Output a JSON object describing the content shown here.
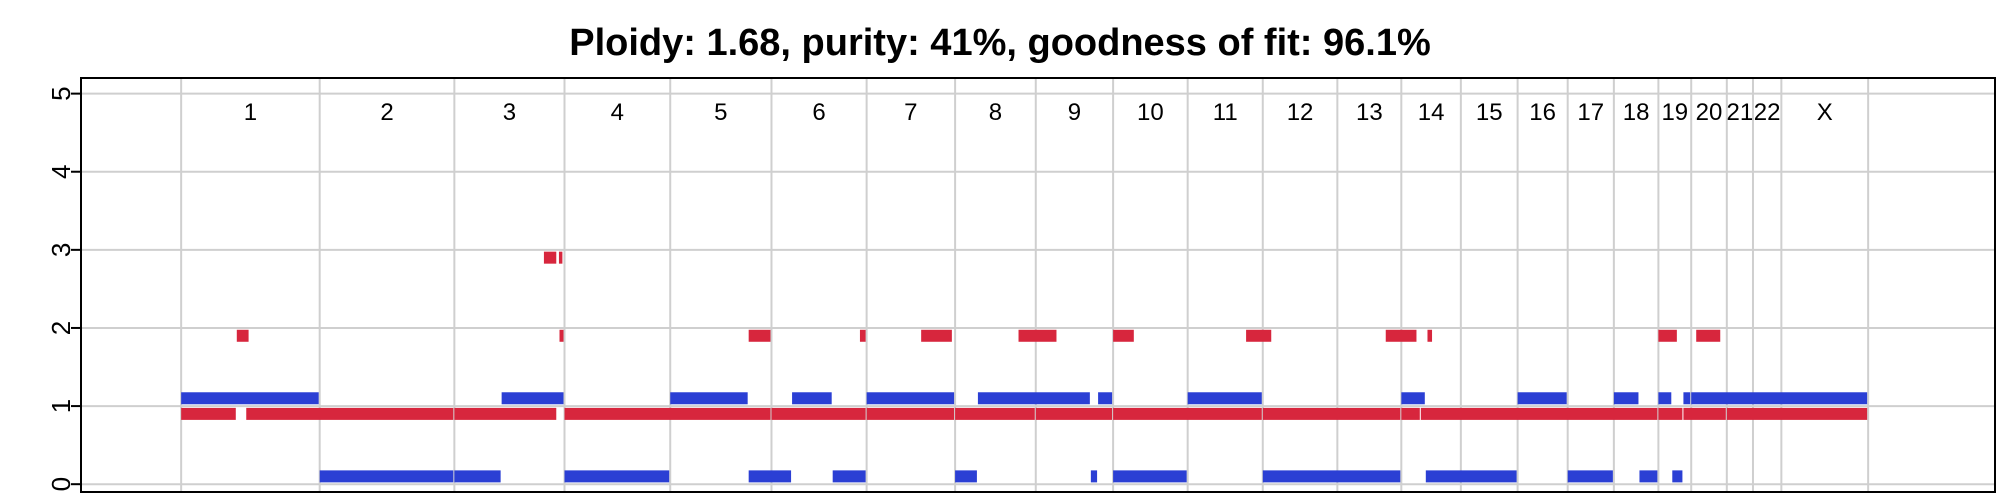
{
  "chart_data": {
    "type": "segment",
    "title": "Ploidy: 1.68, purity: 41%, goodness of fit: 96.1%",
    "xlabel": "",
    "ylabel": "",
    "ylim": [
      0,
      5
    ],
    "yticks": [
      "0",
      "1",
      "2",
      "3",
      "4",
      "5"
    ],
    "grid": true,
    "x_units": "genome position (Mb, cumulative)",
    "xlim": [
      -180,
      3260
    ],
    "chromosomes": [
      {
        "label": "1",
        "start": 0,
        "end": 249
      },
      {
        "label": "2",
        "start": 249,
        "end": 491
      },
      {
        "label": "3",
        "start": 491,
        "end": 689
      },
      {
        "label": "4",
        "start": 689,
        "end": 879
      },
      {
        "label": "5",
        "start": 879,
        "end": 1061
      },
      {
        "label": "6",
        "start": 1061,
        "end": 1232
      },
      {
        "label": "7",
        "start": 1232,
        "end": 1391
      },
      {
        "label": "8",
        "start": 1391,
        "end": 1536
      },
      {
        "label": "9",
        "start": 1536,
        "end": 1675
      },
      {
        "label": "10",
        "start": 1675,
        "end": 1809
      },
      {
        "label": "11",
        "start": 1809,
        "end": 1944
      },
      {
        "label": "12",
        "start": 1944,
        "end": 2078
      },
      {
        "label": "13",
        "start": 2078,
        "end": 2193
      },
      {
        "label": "14",
        "start": 2193,
        "end": 2300
      },
      {
        "label": "15",
        "start": 2300,
        "end": 2402
      },
      {
        "label": "16",
        "start": 2402,
        "end": 2492
      },
      {
        "label": "17",
        "start": 2492,
        "end": 2575
      },
      {
        "label": "18",
        "start": 2575,
        "end": 2655
      },
      {
        "label": "19",
        "start": 2655,
        "end": 2714
      },
      {
        "label": "20",
        "start": 2714,
        "end": 2778
      },
      {
        "label": "21",
        "start": 2778,
        "end": 2825
      },
      {
        "label": "22",
        "start": 2825,
        "end": 2876
      },
      {
        "label": "X",
        "start": 2876,
        "end": 3032
      }
    ],
    "series": [
      {
        "color": "#d7263d",
        "segments": [
          {
            "x0": 0,
            "x1": 100,
            "y": 0.9
          },
          {
            "x0": 100,
            "x1": 123,
            "y": 1.9
          },
          {
            "x0": 117,
            "x1": 491,
            "y": 0.9
          },
          {
            "x0": 491,
            "x1": 676,
            "y": 0.9
          },
          {
            "x0": 652,
            "x1": 676,
            "y": 2.9
          },
          {
            "x0": 679,
            "x1": 687,
            "y": 2.9
          },
          {
            "x0": 680,
            "x1": 689,
            "y": 1.9
          },
          {
            "x0": 689,
            "x1": 1061,
            "y": 0.9
          },
          {
            "x0": 1020,
            "x1": 1061,
            "y": 1.9
          },
          {
            "x0": 1061,
            "x1": 1232,
            "y": 0.9
          },
          {
            "x0": 1220,
            "x1": 1232,
            "y": 1.9
          },
          {
            "x0": 1232,
            "x1": 1391,
            "y": 0.9
          },
          {
            "x0": 1330,
            "x1": 1387,
            "y": 1.9
          },
          {
            "x0": 1391,
            "x1": 1536,
            "y": 0.9
          },
          {
            "x0": 1505,
            "x1": 1575,
            "y": 1.9
          },
          {
            "x0": 1536,
            "x1": 1675,
            "y": 0.9
          },
          {
            "x0": 1675,
            "x1": 1714,
            "y": 1.9
          },
          {
            "x0": 1675,
            "x1": 1944,
            "y": 0.9
          },
          {
            "x0": 1914,
            "x1": 1961,
            "y": 1.9
          },
          {
            "x0": 1944,
            "x1": 2193,
            "y": 0.9
          },
          {
            "x0": 2165,
            "x1": 2222,
            "y": 1.9
          },
          {
            "x0": 2193,
            "x1": 2228,
            "y": 0.9
          },
          {
            "x0": 2240,
            "x1": 2250,
            "y": 1.9
          },
          {
            "x0": 2228,
            "x1": 2655,
            "y": 0.9
          },
          {
            "x0": 2655,
            "x1": 2700,
            "y": 0.9
          },
          {
            "x0": 2655,
            "x1": 2690,
            "y": 1.9
          },
          {
            "x0": 2700,
            "x1": 2778,
            "y": 0.9
          },
          {
            "x0": 2723,
            "x1": 2768,
            "y": 1.9
          },
          {
            "x0": 2778,
            "x1": 3032,
            "y": 0.9
          }
        ]
      },
      {
        "color": "#2b3fd4",
        "segments": [
          {
            "x0": 0,
            "x1": 249,
            "y": 1.1
          },
          {
            "x0": 249,
            "x1": 491,
            "y": 0.1
          },
          {
            "x0": 491,
            "x1": 576,
            "y": 0.1
          },
          {
            "x0": 576,
            "x1": 689,
            "y": 1.1
          },
          {
            "x0": 689,
            "x1": 879,
            "y": 0.1
          },
          {
            "x0": 879,
            "x1": 1020,
            "y": 1.1
          },
          {
            "x0": 1020,
            "x1": 1098,
            "y": 0.1
          },
          {
            "x0": 1098,
            "x1": 1171,
            "y": 1.1
          },
          {
            "x0": 1171,
            "x1": 1232,
            "y": 0.1
          },
          {
            "x0": 1232,
            "x1": 1391,
            "y": 1.1
          },
          {
            "x0": 1391,
            "x1": 1432,
            "y": 0.1
          },
          {
            "x0": 1432,
            "x1": 1635,
            "y": 1.1
          },
          {
            "x0": 1635,
            "x1": 1648,
            "y": 0.1
          },
          {
            "x0": 1648,
            "x1": 1675,
            "y": 1.1
          },
          {
            "x0": 1675,
            "x1": 1809,
            "y": 0.1
          },
          {
            "x0": 1809,
            "x1": 1944,
            "y": 1.1
          },
          {
            "x0": 1944,
            "x1": 2193,
            "y": 0.1
          },
          {
            "x0": 2193,
            "x1": 2237,
            "y": 1.1
          },
          {
            "x0": 2237,
            "x1": 2402,
            "y": 0.1
          },
          {
            "x0": 2402,
            "x1": 2492,
            "y": 1.1
          },
          {
            "x0": 2492,
            "x1": 2575,
            "y": 0.1
          },
          {
            "x0": 2575,
            "x1": 2621,
            "y": 1.1
          },
          {
            "x0": 2621,
            "x1": 2655,
            "y": 0.1
          },
          {
            "x0": 2655,
            "x1": 2680,
            "y": 1.1
          },
          {
            "x0": 2680,
            "x1": 2700,
            "y": 0.1
          },
          {
            "x0": 2700,
            "x1": 2714,
            "y": 1.1
          },
          {
            "x0": 2714,
            "x1": 3032,
            "y": 1.1
          }
        ]
      }
    ]
  }
}
